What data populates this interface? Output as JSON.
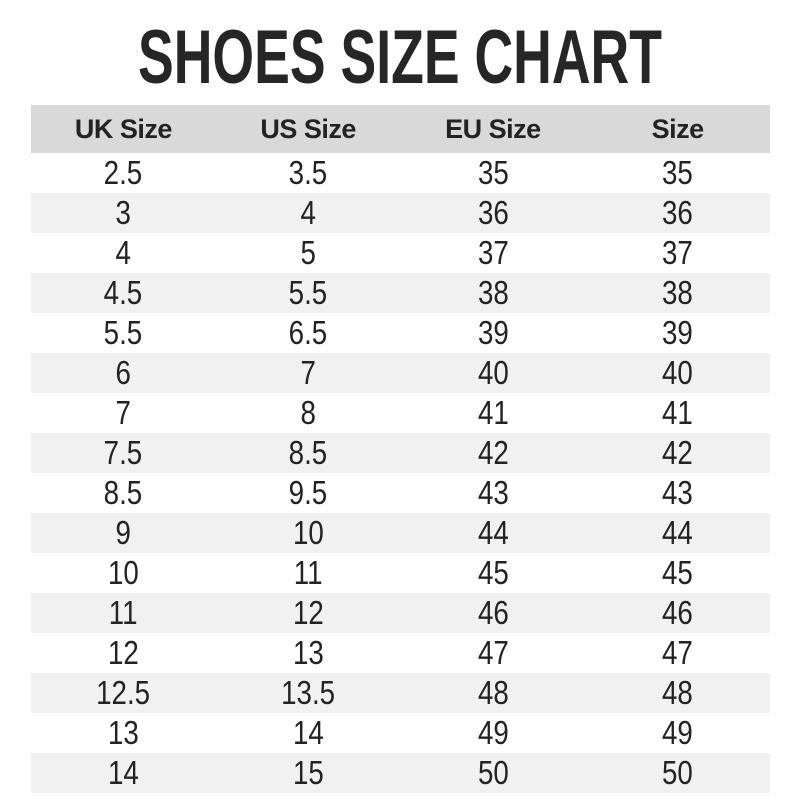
{
  "title": "SHOES SIZE CHART",
  "colors": {
    "page_bg": "#ffffff",
    "title_text": "#262626",
    "header_bg": "#d9d9d9",
    "row_bg": "#ffffff",
    "row_stripe_bg": "#f1f1f1",
    "text": "#232323"
  },
  "chart_data": {
    "type": "table",
    "title": "SHOES SIZE CHART",
    "columns": [
      "UK Size",
      "US Size",
      "EU Size",
      "Size"
    ],
    "rows": [
      [
        "2.5",
        "3.5",
        "35",
        "35"
      ],
      [
        "3",
        "4",
        "36",
        "36"
      ],
      [
        "4",
        "5",
        "37",
        "37"
      ],
      [
        "4.5",
        "5.5",
        "38",
        "38"
      ],
      [
        "5.5",
        "6.5",
        "39",
        "39"
      ],
      [
        "6",
        "7",
        "40",
        "40"
      ],
      [
        "7",
        "8",
        "41",
        "41"
      ],
      [
        "7.5",
        "8.5",
        "42",
        "42"
      ],
      [
        "8.5",
        "9.5",
        "43",
        "43"
      ],
      [
        "9",
        "10",
        "44",
        "44"
      ],
      [
        "10",
        "11",
        "45",
        "45"
      ],
      [
        "11",
        "12",
        "46",
        "46"
      ],
      [
        "12",
        "13",
        "47",
        "47"
      ],
      [
        "12.5",
        "13.5",
        "48",
        "48"
      ],
      [
        "13",
        "14",
        "49",
        "49"
      ],
      [
        "14",
        "15",
        "50",
        "50"
      ]
    ],
    "layout": {
      "stripe_pattern": "even rows white, odd rows light gray",
      "header_style": "solid gray band, bold text",
      "alignment": "all columns centered"
    }
  }
}
